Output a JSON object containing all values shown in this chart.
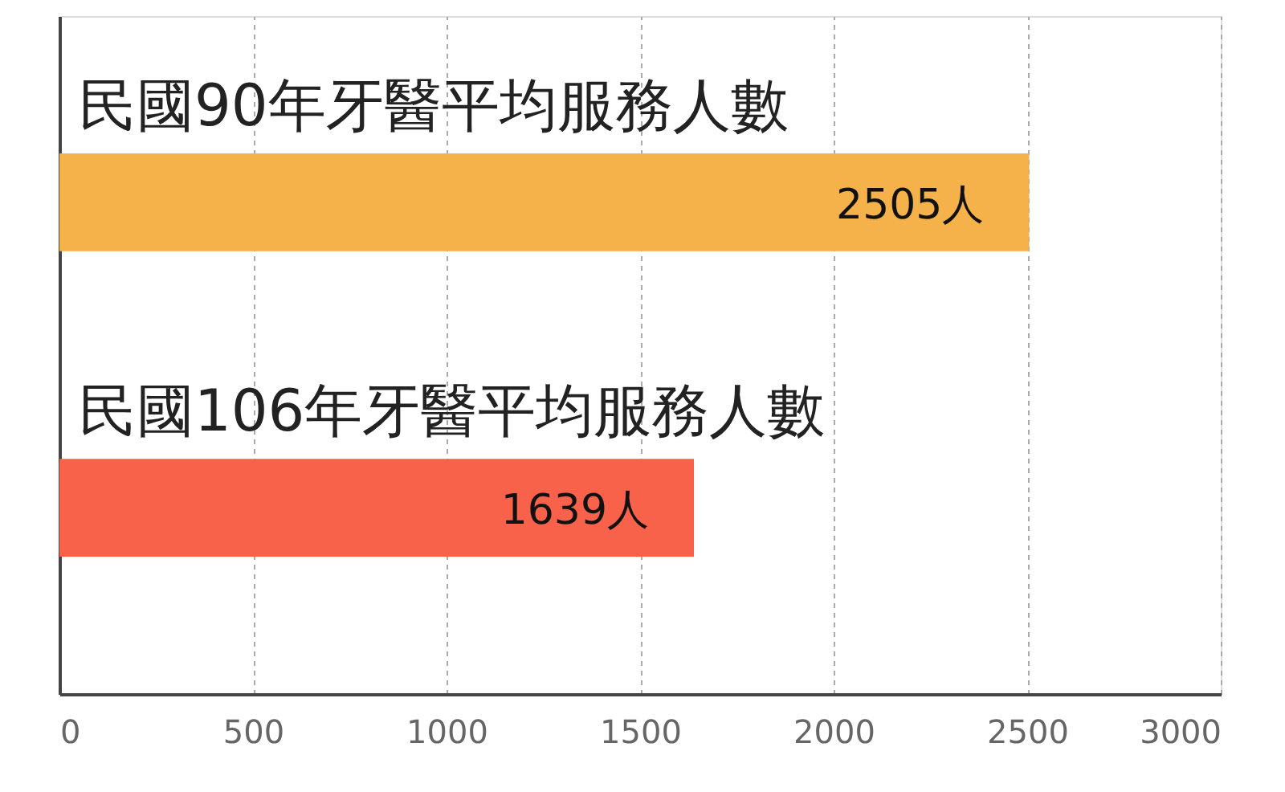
{
  "chart_data": {
    "type": "bar",
    "orientation": "horizontal",
    "categories": [
      "民國90年牙醫平均服務人數",
      "民國106年牙醫平均服務人數"
    ],
    "values": [
      2505,
      1639
    ],
    "colors": [
      "#f5b14a",
      "#f8624a"
    ],
    "value_labels": [
      "2505人",
      "1639人"
    ],
    "xlim": [
      0,
      3000
    ],
    "xticks": [
      0,
      500,
      1000,
      1500,
      2000,
      2500,
      3000
    ],
    "grid": "x"
  }
}
